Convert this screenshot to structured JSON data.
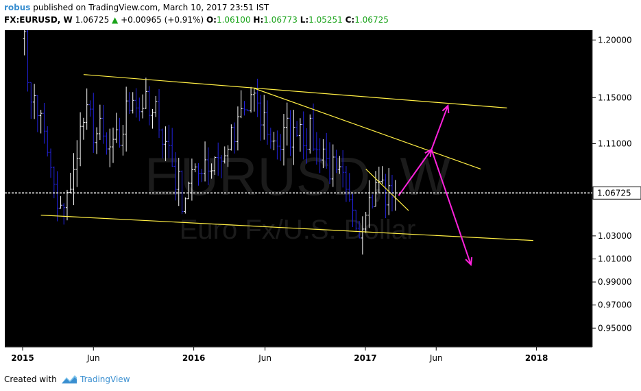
{
  "header": {
    "author": "robus",
    "published": "published on TradingView.com, March 10, 2017 23:51 IST",
    "symbol": "FX:EURUSD, W",
    "last": "1.06725",
    "change": "+0.00965 (+0.91%)",
    "o_label": "O:",
    "o_value": "1.06100",
    "h_label": "H:",
    "h_value": "1.06773",
    "l_label": "L:",
    "l_value": "1.05251",
    "c_label": "C:",
    "c_value": "1.06725"
  },
  "watermark": {
    "symbol": "EURUSD, W",
    "description": "Euro Fx/U.S. Dollar"
  },
  "footer": {
    "created_with": "Created with",
    "brand": "TradingView"
  },
  "colors": {
    "background": "#000000",
    "bar_up": "#ffffff",
    "bar_down": "#2222dd",
    "trendline": "#ffee44",
    "arrow": "#ff22dd",
    "price_line": "#ffffff",
    "axis_text": "#000000"
  },
  "chart_data": {
    "type": "ohlc",
    "price_scale": [
      "1.20000",
      "1.15000",
      "1.11000",
      "1.03000",
      "1.01000",
      "0.99000",
      "0.97000",
      "0.95000"
    ],
    "current_price_label": "1.06725",
    "current_price": 1.06725,
    "time_axis": [
      {
        "label": "2015",
        "date": "2015-01-01",
        "bold": true
      },
      {
        "label": "Jun",
        "date": "2015-06-01",
        "bold": false
      },
      {
        "label": "2016",
        "date": "2016-01-01",
        "bold": true
      },
      {
        "label": "Jun",
        "date": "2016-06-01",
        "bold": false
      },
      {
        "label": "2017",
        "date": "2017-01-01",
        "bold": true
      },
      {
        "label": "Jun",
        "date": "2017-06-01",
        "bold": false
      },
      {
        "label": "2018",
        "date": "2018-01-01",
        "bold": true
      }
    ],
    "x_range": [
      "2014-11-24",
      "2018-04-30"
    ],
    "y_range": [
      0.9335,
      1.2085
    ],
    "anchors": [
      {
        "date": "2014-12-29",
        "value": 1.213
      },
      {
        "date": "2015-01-19",
        "value": 1.148
      },
      {
        "date": "2015-02-09",
        "value": 1.135
      },
      {
        "date": "2015-03-16",
        "value": 1.05
      },
      {
        "date": "2015-04-13",
        "value": 1.07
      },
      {
        "date": "2015-05-11",
        "value": 1.135
      },
      {
        "date": "2015-06-08",
        "value": 1.12
      },
      {
        "date": "2015-07-13",
        "value": 1.1
      },
      {
        "date": "2015-08-24",
        "value": 1.15
      },
      {
        "date": "2015-10-19",
        "value": 1.13
      },
      {
        "date": "2015-12-07",
        "value": 1.065
      },
      {
        "date": "2016-01-11",
        "value": 1.09
      },
      {
        "date": "2016-03-07",
        "value": 1.1
      },
      {
        "date": "2016-05-02",
        "value": 1.15
      },
      {
        "date": "2016-06-20",
        "value": 1.11
      },
      {
        "date": "2016-08-15",
        "value": 1.125
      },
      {
        "date": "2016-10-24",
        "value": 1.09
      },
      {
        "date": "2016-12-19",
        "value": 1.04
      },
      {
        "date": "2017-01-23",
        "value": 1.075
      },
      {
        "date": "2017-03-06",
        "value": 1.062
      }
    ],
    "trendlines": [
      {
        "name": "upper-channel",
        "p1": {
          "date": "2015-05-11",
          "value": 1.17
        },
        "p2": {
          "date": "2017-10-30",
          "value": 1.141
        }
      },
      {
        "name": "lower-channel",
        "p1": {
          "date": "2015-02-09",
          "value": 1.048
        },
        "p2": {
          "date": "2017-12-25",
          "value": 1.026
        }
      },
      {
        "name": "descending-resistance",
        "p1": {
          "date": "2016-05-09",
          "value": 1.158
        },
        "p2": {
          "date": "2017-09-04",
          "value": 1.088
        }
      },
      {
        "name": "short-resistance",
        "p1": {
          "date": "2017-01-02",
          "value": 1.088
        },
        "p2": {
          "date": "2017-04-03",
          "value": 1.052
        }
      }
    ],
    "arrows": [
      {
        "name": "arrow-up-1",
        "from": {
          "date": "2017-03-13",
          "value": 1.065
        },
        "to": {
          "date": "2017-05-22",
          "value": 1.105
        }
      },
      {
        "name": "arrow-down",
        "from": {
          "date": "2017-05-22",
          "value": 1.105
        },
        "to": {
          "date": "2017-08-14",
          "value": 1.005
        }
      },
      {
        "name": "arrow-up-2",
        "from": {
          "date": "2017-05-22",
          "value": 1.105
        },
        "to": {
          "date": "2017-06-26",
          "value": 1.143
        }
      }
    ]
  }
}
